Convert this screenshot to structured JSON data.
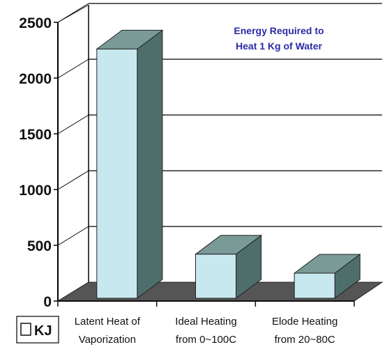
{
  "chart_data": {
    "type": "bar",
    "title_lines": [
      "Energy Required to",
      "Heat 1 Kg of Water"
    ],
    "categories": [
      [
        "Latent Heat of",
        "Vaporization"
      ],
      [
        "Ideal Heating",
        "from 0~100C"
      ],
      [
        "Elode Heating",
        "from 20~80C"
      ]
    ],
    "series": [
      {
        "name": "KJ",
        "values": [
          2260,
          420,
          250
        ]
      }
    ],
    "ylim": [
      0,
      2500
    ],
    "yticks": [
      "0",
      "500",
      "1000",
      "1500",
      "2000",
      "2500"
    ],
    "grid": true,
    "legend": "bottom-left",
    "colors": {
      "bar_front": "#c8e8ef",
      "bar_top": "#7a9a98",
      "bar_side": "#4e6e6c",
      "floor": "#555555",
      "grid": "#000000",
      "title": "#2a2aa8"
    }
  }
}
